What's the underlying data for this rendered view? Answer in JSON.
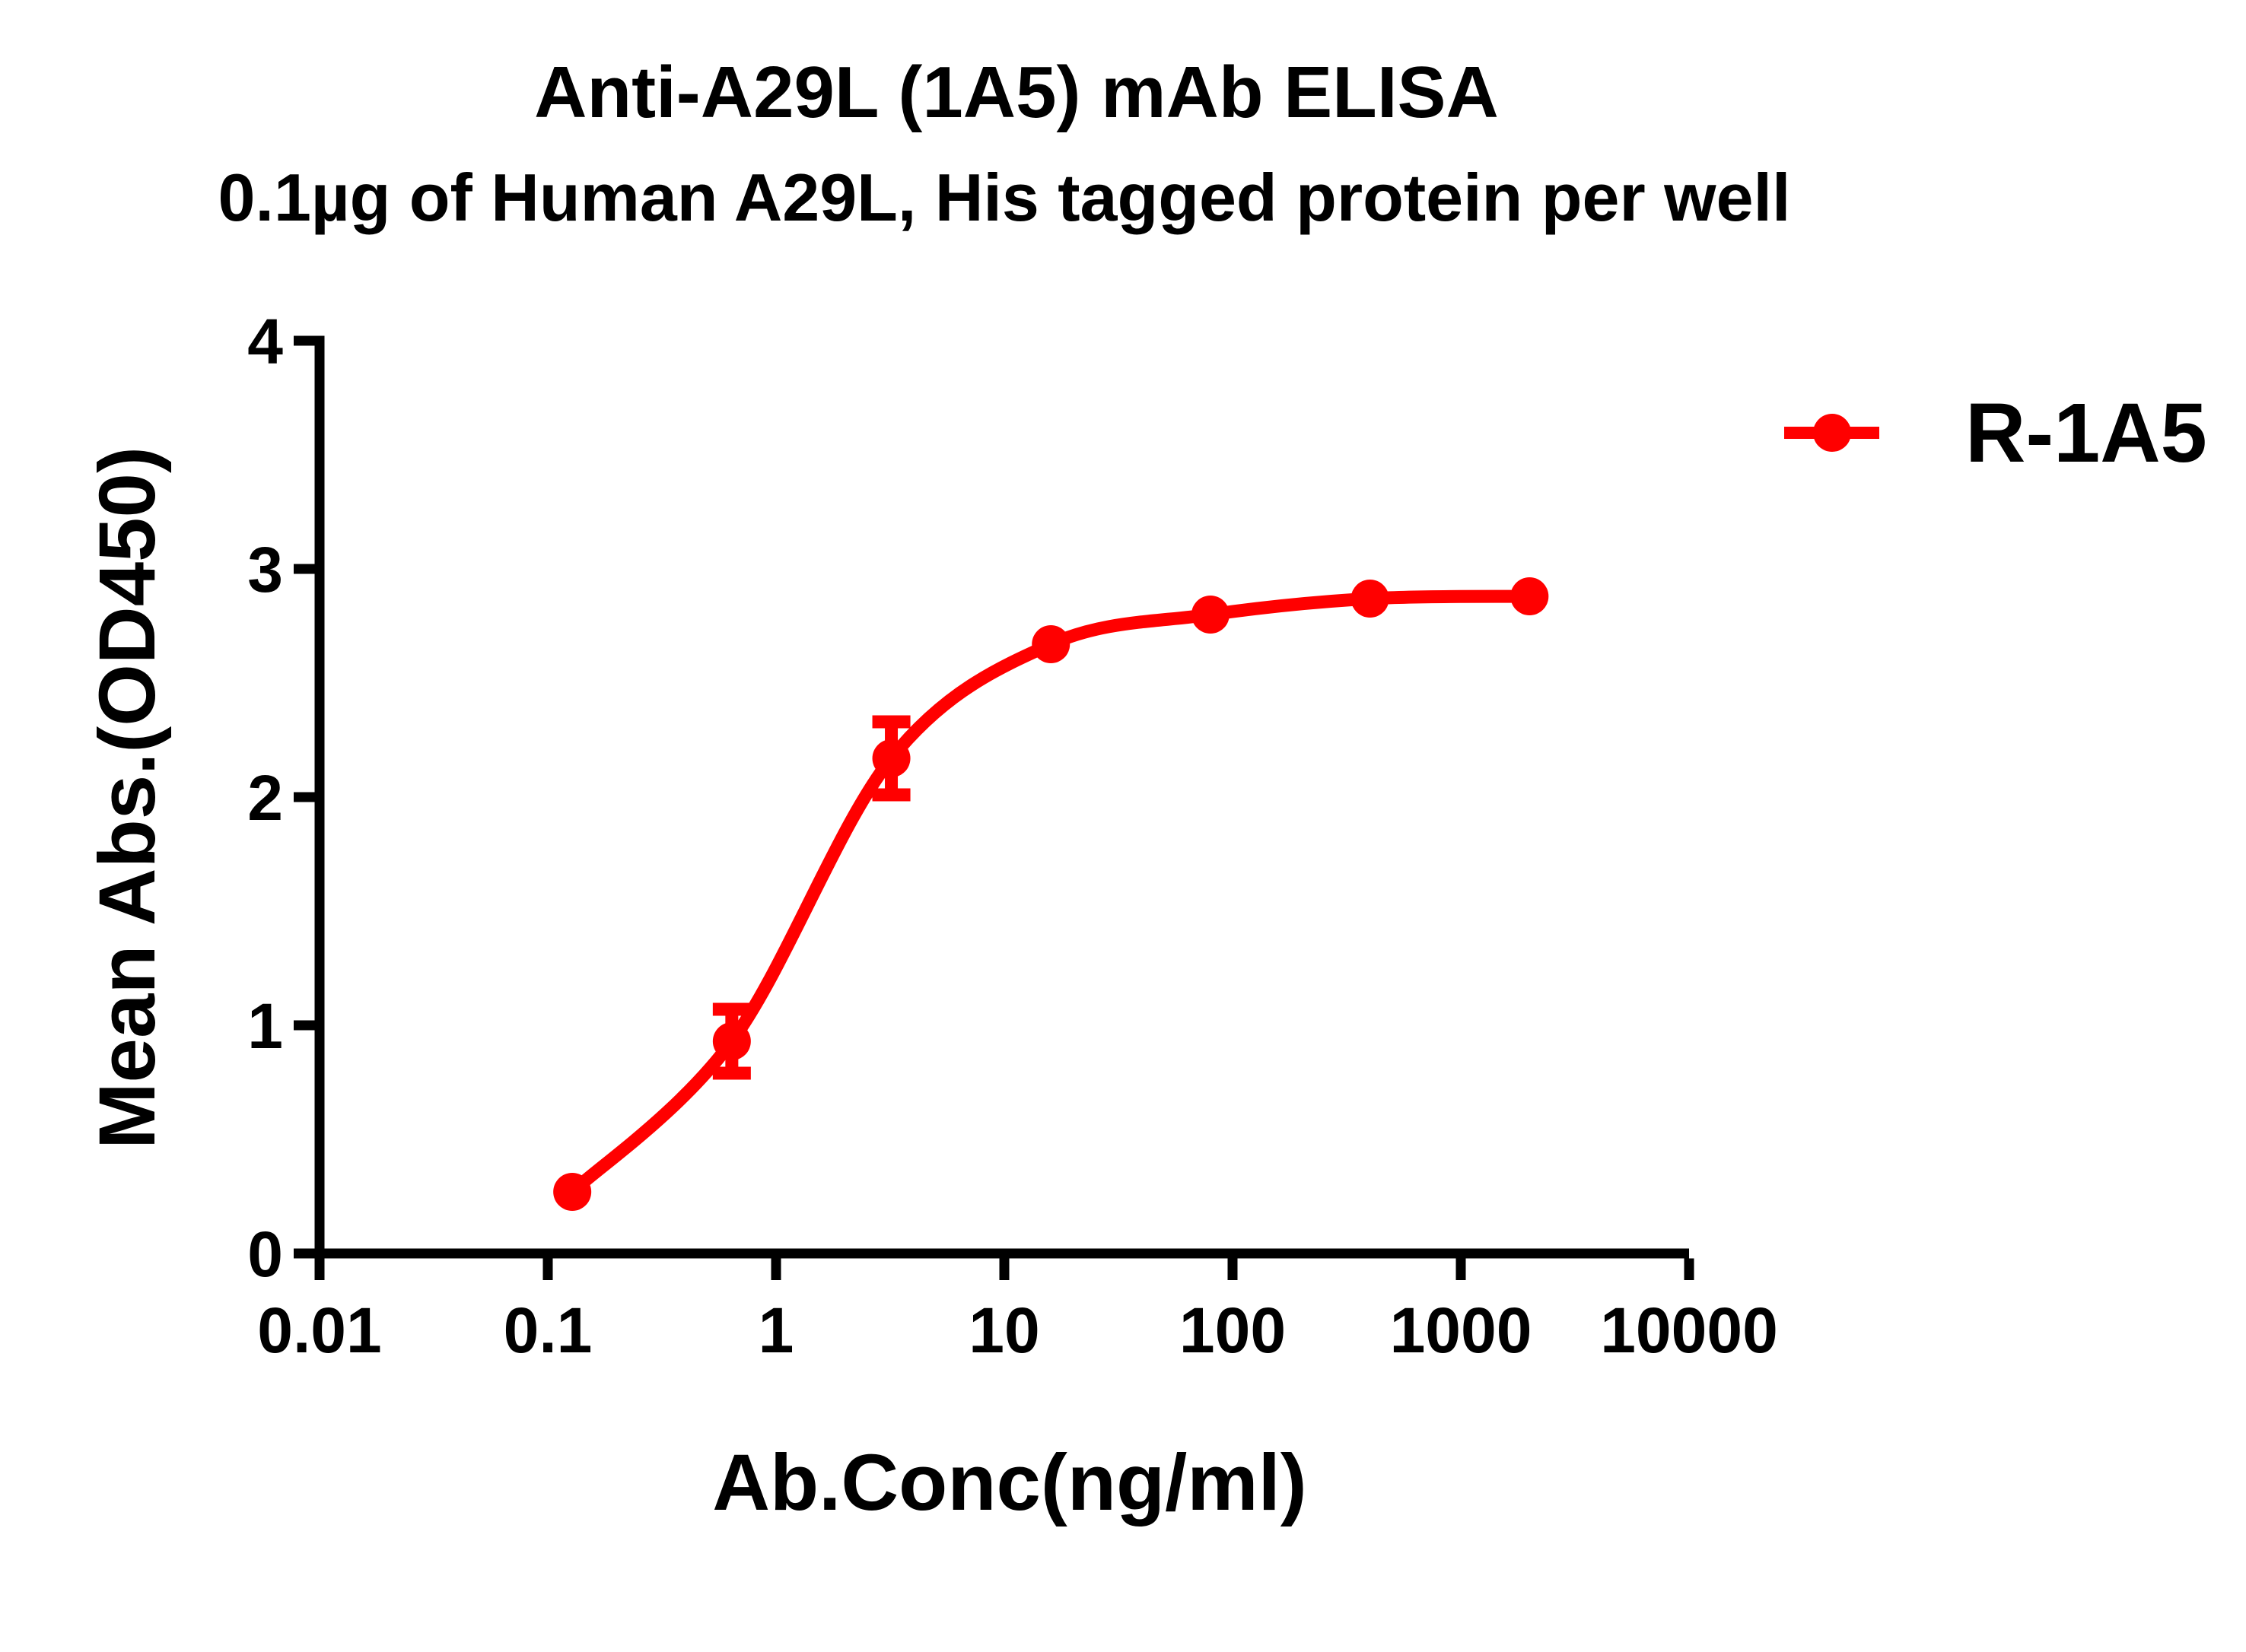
{
  "title": "Anti-A29L (1A5) mAb ELISA",
  "subtitle": "0.1µg of Human A29L, His tagged protein per well",
  "chart_data": {
    "type": "line",
    "title": "Anti-A29L (1A5) mAb ELISA",
    "subtitle": "0.1µg of Human A29L, His tagged protein per well",
    "xlabel": "Ab.Conc(ng/ml)",
    "ylabel": "Mean Abs.(OD450)",
    "x_scale": "log10",
    "xlim": [
      0.01,
      10000
    ],
    "ylim": [
      0,
      4
    ],
    "x_tick_labels": [
      "0.01",
      "0.1",
      "1",
      "10",
      "100",
      "1000",
      "10000"
    ],
    "x_ticks": [
      0.01,
      0.1,
      1,
      10,
      100,
      1000,
      10000
    ],
    "y_tick_labels": [
      "0",
      "1",
      "2",
      "3",
      "4"
    ],
    "y_ticks": [
      0,
      1,
      2,
      3,
      4
    ],
    "grid": false,
    "legend_position": "top-right",
    "series": [
      {
        "name": "R-1A5",
        "color": "#FF0000",
        "marker": "circle",
        "line": "sigmoid-fit",
        "x": [
          0.128,
          0.64,
          3.2,
          16,
          80,
          400,
          2000
        ],
        "y": [
          0.27,
          0.93,
          2.17,
          2.67,
          2.8,
          2.87,
          2.88
        ],
        "y_err": [
          0,
          0.14,
          0.16,
          0,
          0,
          0,
          0
        ]
      }
    ]
  },
  "colors": {
    "series": "#FF0000",
    "axis": "#000000",
    "text": "#000000",
    "background": "#FFFFFF"
  }
}
